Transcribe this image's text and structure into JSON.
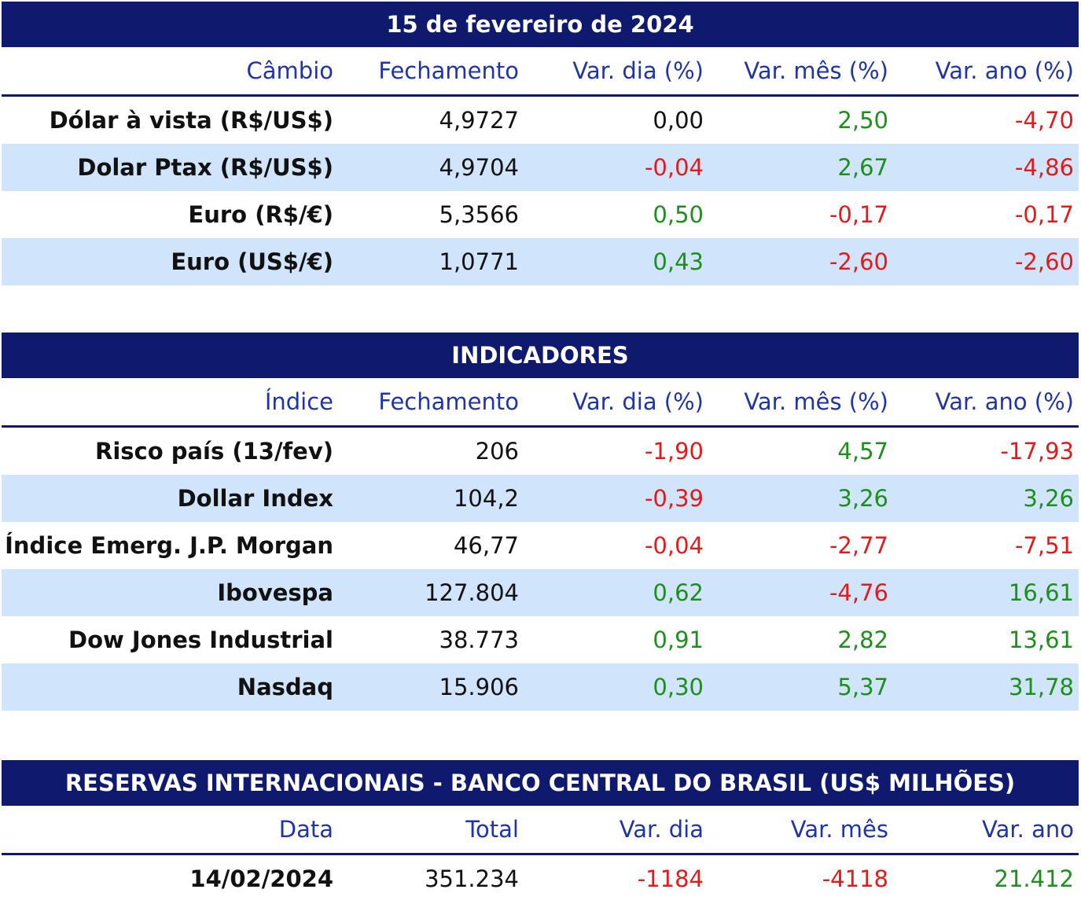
{
  "cambio": {
    "title": "15 de fevereiro de 2024",
    "headers": [
      "Câmbio",
      "Fechamento",
      "Var. dia (%)",
      "Var. mês (%)",
      "Var. ano (%)"
    ],
    "rows": [
      {
        "name": "Dólar à vista (R$/US$)",
        "close": "4,9727",
        "day": "0,00",
        "month": "2,50",
        "year": "-4,70"
      },
      {
        "name": "Dolar Ptax (R$/US$)",
        "close": "4,9704",
        "day": "-0,04",
        "month": "2,67",
        "year": "-4,86"
      },
      {
        "name": "Euro (R$/€)",
        "close": "5,3566",
        "day": "0,50",
        "month": "-0,17",
        "year": "-0,17"
      },
      {
        "name": "Euro (US$/€)",
        "close": "1,0771",
        "day": "0,43",
        "month": "-2,60",
        "year": "-2,60"
      }
    ]
  },
  "indicadores": {
    "title": "INDICADORES",
    "headers": [
      "Índice",
      "Fechamento",
      "Var. dia (%)",
      "Var. mês (%)",
      "Var. ano (%)"
    ],
    "rows": [
      {
        "name": "Risco país (13/fev)",
        "close": "206",
        "day": "-1,90",
        "month": "4,57",
        "year": "-17,93"
      },
      {
        "name": "Dollar Index",
        "close": "104,2",
        "day": "-0,39",
        "month": "3,26",
        "year": "3,26"
      },
      {
        "name": "Índice Emerg. J.P. Morgan",
        "close": "46,77",
        "day": "-0,04",
        "month": "-2,77",
        "year": "-7,51"
      },
      {
        "name": "Ibovespa",
        "close": "127.804",
        "day": "0,62",
        "month": "-4,76",
        "year": "16,61"
      },
      {
        "name": "Dow Jones Industrial",
        "close": "38.773",
        "day": "0,91",
        "month": "2,82",
        "year": "13,61"
      },
      {
        "name": "Nasdaq",
        "close": "15.906",
        "day": "0,30",
        "month": "5,37",
        "year": "31,78"
      }
    ]
  },
  "reservas": {
    "title": "RESERVAS INTERNACIONAIS - BANCO CENTRAL DO BRASIL (US$ MILHÕES)",
    "headers": [
      "Data",
      "Total",
      "Var. dia",
      "Var. mês",
      "Var. ano"
    ],
    "rows": [
      {
        "name": "14/02/2024",
        "close": "351.234",
        "day": "-1184",
        "month": "-4118",
        "year": "21.412"
      }
    ]
  },
  "colors": {
    "banner": "#0f1a6f",
    "header_text": "#1f34a8",
    "positive": "#1e8f1e",
    "negative": "#e11b1b",
    "alt_row": "#d0e4fb"
  }
}
